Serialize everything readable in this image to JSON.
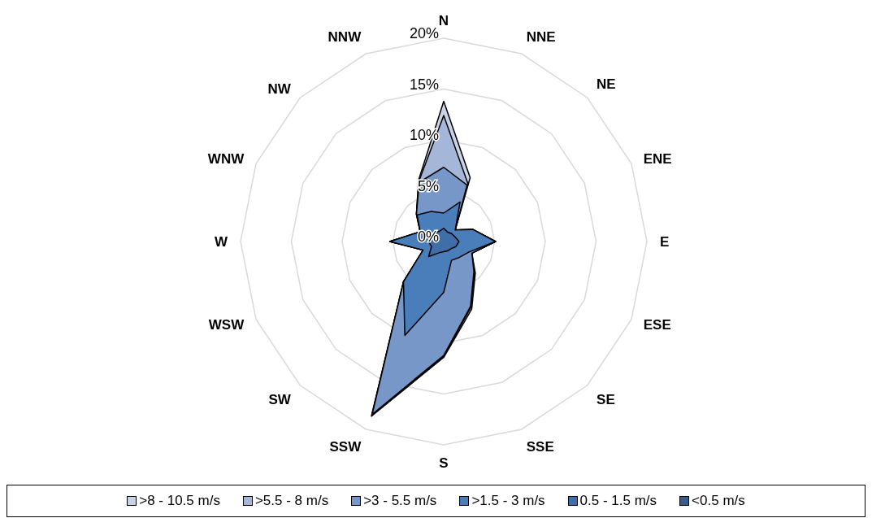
{
  "chart_data": {
    "type": "radar",
    "categories": [
      "N",
      "NNE",
      "NE",
      "ENE",
      "E",
      "ESE",
      "SE",
      "SSE",
      "S",
      "SSW",
      "SW",
      "WSW",
      "W",
      "WNW",
      "NW",
      "NNW"
    ],
    "series": [
      {
        "name": ">8 - 10.5 m/s",
        "color": "#c9d3e8",
        "values": [
          13.8,
          6.8,
          1.6,
          3.1,
          5.1,
          3.0,
          4.4,
          7.2,
          11.4,
          18.6,
          5.6,
          2.2,
          5.3,
          2.5,
          3.8,
          6.5
        ]
      },
      {
        "name": ">5.5 - 8 m/s",
        "color": "#a5b7d9",
        "values": [
          12.4,
          6.2,
          1.6,
          3.1,
          5.1,
          3.0,
          4.3,
          7.0,
          11.3,
          18.5,
          5.6,
          2.2,
          5.3,
          2.5,
          3.8,
          6.4
        ]
      },
      {
        "name": ">3 - 5.5 m/s",
        "color": "#7797c8",
        "values": [
          7.3,
          6.0,
          1.6,
          3.1,
          5.1,
          3.0,
          4.2,
          6.9,
          11.2,
          18.4,
          5.6,
          2.2,
          5.3,
          2.5,
          3.8,
          6.3
        ]
      },
      {
        "name": ">1.5 - 3 m/s",
        "color": "#4a7ebb",
        "values": [
          2.8,
          4.2,
          1.6,
          3.1,
          5.1,
          2.7,
          2.2,
          2.0,
          5.0,
          10.0,
          5.6,
          2.2,
          5.3,
          2.5,
          3.7,
          3.2
        ]
      },
      {
        "name": "0.5 - 1.5 m/s",
        "color": "#3f6ea8",
        "values": [
          1.3,
          1.0,
          1.1,
          1.2,
          1.5,
          1.3,
          1.0,
          1.0,
          1.0,
          1.2,
          2.1,
          1.3,
          1.5,
          1.0,
          1.2,
          1.1
        ]
      },
      {
        "name": "<0.5 m/s",
        "color": "#355d8f",
        "values": [
          null,
          null,
          null,
          null,
          null,
          null,
          null,
          null,
          null,
          null,
          null,
          null,
          null,
          null,
          null,
          null
        ]
      }
    ],
    "ylim": [
      0,
      20
    ],
    "yticks": [
      {
        "value": 0,
        "label": "0%"
      },
      {
        "value": 5,
        "label": "5%"
      },
      {
        "value": 10,
        "label": "10%"
      },
      {
        "value": 15,
        "label": "15%"
      },
      {
        "value": 20,
        "label": "20%"
      }
    ],
    "grid": true,
    "legend": "bottom"
  }
}
